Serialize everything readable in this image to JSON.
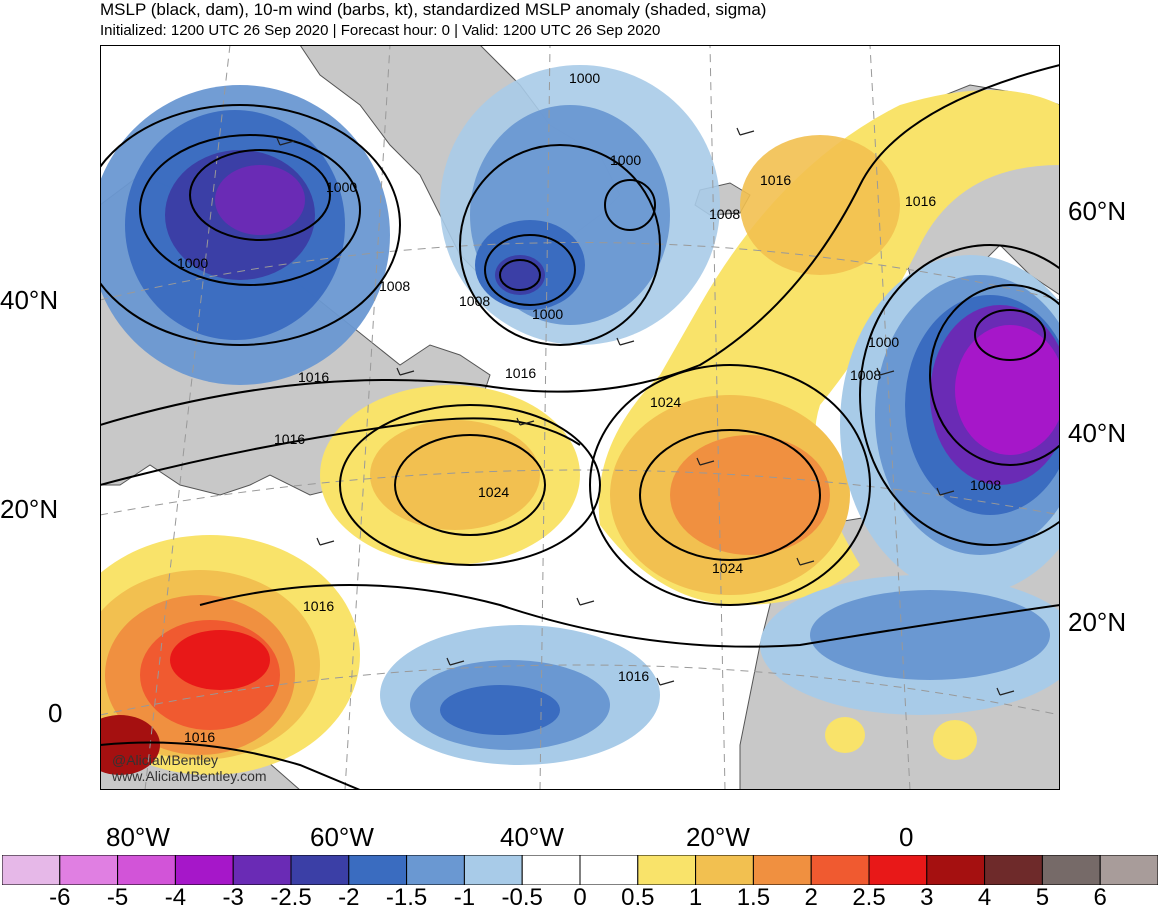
{
  "title": "MSLP (black, dam), 10-m wind (barbs, kt), standardized MSLP anomaly (shaded, sigma)",
  "subtitle": "Initialized: 1200 UTC 26 Sep 2020 | Forecast hour: 0 | Valid: 1200 UTC 26 Sep 2020",
  "credit": {
    "handle": "@AliciaMBentley",
    "site": "www.AliciaMBentley.com"
  },
  "axes": {
    "lat_left": [
      "40°N",
      "20°N",
      "0"
    ],
    "lat_right": [
      "60°N",
      "40°N",
      "20°N"
    ],
    "lon_bottom": [
      "80°W",
      "60°W",
      "40°W",
      "20°W",
      "0"
    ]
  },
  "isobar_labels": [
    "1000",
    "1000",
    "1000",
    "1000",
    "1000",
    "1000",
    "1008",
    "1008",
    "1008",
    "1008",
    "1008",
    "1016",
    "1016",
    "1016",
    "1016",
    "1016",
    "1016",
    "1016",
    "1024",
    "1024",
    "1024"
  ],
  "colorbar": {
    "labels": [
      "-6",
      "-5",
      "-4",
      "-3",
      "-2.5",
      "-2",
      "-1.5",
      "-1",
      "-0.5",
      "0",
      "0.5",
      "1",
      "1.5",
      "2",
      "2.5",
      "3",
      "4",
      "5",
      "6"
    ],
    "colors": [
      "#e6b8e8",
      "#e07fe2",
      "#d254d8",
      "#a617c9",
      "#6a2bb5",
      "#3b3fa6",
      "#3a6cc0",
      "#6a98d2",
      "#a8cbe8",
      "#ffffff",
      "#ffffff",
      "#f9e36a",
      "#f2c050",
      "#f09040",
      "#f05a30",
      "#e81818",
      "#a51010",
      "#6e2a2a",
      "#766a68",
      "#a89c9a"
    ]
  }
}
